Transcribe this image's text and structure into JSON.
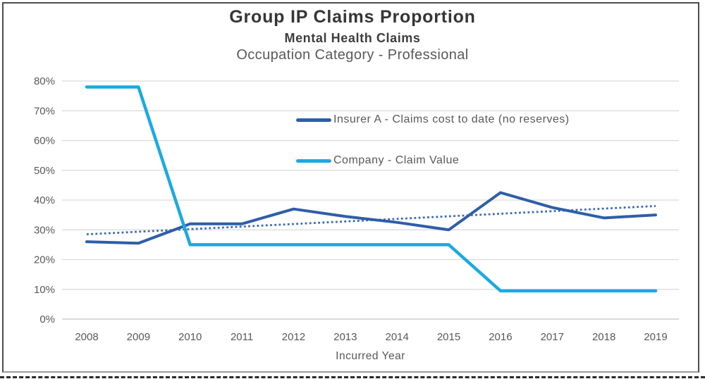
{
  "titles": {
    "title": "Group IP Claims Proportion",
    "subtitle": "Mental Health Claims",
    "subsubtitle": "Occupation Category - Professional"
  },
  "chart_data": {
    "type": "line",
    "categories": [
      "2008",
      "2009",
      "2010",
      "2011",
      "2012",
      "2013",
      "2014",
      "2015",
      "2016",
      "2017",
      "2018",
      "2019"
    ],
    "series": [
      {
        "name": "Insurer A - Claims cost to date (no reserves)",
        "color": "#2E5EA8",
        "width": 4,
        "values": [
          26,
          25.5,
          32,
          32,
          37,
          34.5,
          32.5,
          30,
          42.5,
          37.5,
          34,
          35
        ]
      },
      {
        "name": "Company - Claim Value",
        "color": "#1CA9E1",
        "width": 4.5,
        "values": [
          78,
          78,
          25,
          25,
          25,
          25,
          25,
          25,
          9.5,
          9.5,
          9.5,
          9.5
        ]
      }
    ],
    "trendline": {
      "series": "Insurer A - Claims cost to date (no reserves)",
      "style": "dotted",
      "color": "#3C68BA",
      "start": 28.5,
      "end": 38
    },
    "xlabel": "Incurred Year",
    "ylabel": "",
    "ylim": [
      0,
      80
    ],
    "ytick_step": 10,
    "yticks": [
      "0%",
      "10%",
      "20%",
      "30%",
      "40%",
      "50%",
      "60%",
      "70%",
      "80%"
    ],
    "grid": "horizontal",
    "grid_color": "#d9d9d9",
    "axis_text_color": "#595959",
    "legend_position": "inside-upper-middle"
  }
}
